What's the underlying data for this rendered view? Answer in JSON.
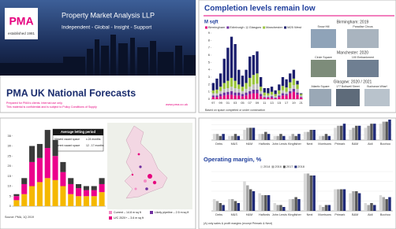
{
  "title_slide": {
    "logo": "PMA",
    "logo_sub": "established 1981",
    "company": "Property Market Analysis LLP",
    "tagline": "Independent - Global - Insight - Support",
    "title": "PMA UK National Forecasts",
    "disclaimer": [
      "Prepared for PMA's clients. Internal use only.",
      "This material is confidential and is subject to Policy Conditions of Supply"
    ],
    "url": "www.pma.co.uk"
  },
  "completion_slide": {
    "title": "Completion levels remain low",
    "note": "Based on space completed or under construction",
    "photos": [
      {
        "heading": "Birmingham: 2019",
        "captions": [
          "Snow Hill",
          "Paradise Circus"
        ]
      },
      {
        "heading": "Manchester: 2020",
        "captions": [
          "Circle Square",
          "100 Embankment"
        ]
      },
      {
        "heading": "Glasgow: 2020 / 2021",
        "captions": [
          "Atlantic Square",
          "177 Bothwell Street",
          "Buchanan Wharf"
        ]
      }
    ]
  },
  "letting_slide": {
    "table": {
      "title": "Average letting period",
      "rows": [
        [
          "Viewed vacant space",
          "c.24 months"
        ],
        [
          "Current vacant space",
          "12 - 17 months"
        ]
      ]
    },
    "map_legend": [
      "Current – 14.8 m sq ft",
      "U/C 2020+ – 3.6 m sq ft",
      "Likely pipeline – 2.5 m sq ft"
    ],
    "source": "Source: PMA, 1Q 2019"
  },
  "retail_slide": {
    "note": "(A) only sales & profit margins (except Primark & Next)"
  },
  "chart_data": [
    {
      "type": "bar",
      "stacked": true,
      "y_label": "M sqft",
      "legend": "top",
      "categories": [
        "97",
        null,
        "99",
        null,
        "01",
        null,
        "03",
        null,
        "05",
        null,
        "07",
        null,
        "09",
        null,
        "11",
        null,
        "13",
        null,
        "15",
        null,
        "17",
        null,
        "19",
        null,
        "21"
      ],
      "ylim": [
        0,
        9
      ],
      "yticks": [
        0,
        1,
        2,
        3,
        4,
        5,
        6,
        7,
        8,
        9
      ],
      "grid": false,
      "series": [
        {
          "name": "Birmingham",
          "color": "#e6007e",
          "values": [
            0.3,
            0.3,
            0.4,
            0.5,
            0.6,
            0.6,
            0.5,
            0.5,
            0.4,
            0.5,
            0.7,
            0.8,
            0.8,
            0.4,
            0.2,
            0.2,
            0.2,
            0.1,
            0.3,
            0.5,
            0.5,
            0.8,
            1.0,
            0.6,
            0.2
          ]
        },
        {
          "name": "Edinburgh",
          "color": "#7030a0",
          "values": [
            0.2,
            0.2,
            0.3,
            0.4,
            0.4,
            0.5,
            0.4,
            0.4,
            0.3,
            0.4,
            0.4,
            0.5,
            0.5,
            0.3,
            0.1,
            0.1,
            0.2,
            0.1,
            0.2,
            0.3,
            0.2,
            0.3,
            0.4,
            0.3,
            0.1
          ]
        },
        {
          "name": "Glasgow",
          "color": "#bfbfbf",
          "values": [
            0.3,
            0.3,
            0.4,
            0.5,
            0.5,
            0.6,
            0.6,
            0.5,
            0.4,
            0.5,
            0.6,
            0.7,
            0.8,
            0.4,
            0.2,
            0.2,
            0.2,
            0.2,
            0.2,
            0.4,
            0.3,
            0.4,
            0.5,
            0.5,
            0.2
          ]
        },
        {
          "name": "Manchester",
          "color": "#9bc53d",
          "values": [
            0.4,
            0.5,
            0.6,
            0.8,
            1.0,
            1.2,
            1.0,
            0.6,
            0.6,
            0.8,
            1.2,
            1.3,
            1.4,
            0.6,
            0.4,
            0.3,
            0.4,
            0.3,
            0.5,
            0.6,
            0.6,
            0.8,
            0.9,
            0.6,
            0.2
          ]
        },
        {
          "name": "M25 West",
          "color": "#1c1f6e",
          "values": [
            1.0,
            1.5,
            1.8,
            3.3,
            4.5,
            5.6,
            5.0,
            2.0,
            1.5,
            1.8,
            2.9,
            2.7,
            3.0,
            1.3,
            0.6,
            0.7,
            0.7,
            0.5,
            0.8,
            1.2,
            1.1,
            1.2,
            1.2,
            0.5,
            0.1
          ]
        }
      ]
    },
    {
      "type": "bar",
      "stacked": true,
      "categories": [
        null,
        null,
        null,
        null,
        null,
        null,
        null,
        null,
        null,
        null,
        null,
        null
      ],
      "ylim": [
        0,
        40
      ],
      "yticks": [
        0,
        5,
        10,
        15,
        20,
        25,
        30,
        35
      ],
      "grid": false,
      "series": [
        {
          "color": "#f5b800",
          "values": [
            3,
            6,
            10,
            12,
            14,
            13,
            10,
            6,
            5,
            5,
            5,
            7
          ]
        },
        {
          "color": "#ec008c",
          "values": [
            2,
            5,
            12,
            12,
            15,
            12,
            7,
            5,
            4,
            3,
            3,
            4
          ]
        },
        {
          "color": "#3a3a3a",
          "values": [
            1,
            3,
            8,
            7,
            9,
            8,
            5,
            3,
            2,
            2,
            2,
            3
          ]
        }
      ]
    },
    {
      "type": "bar",
      "stacked": false,
      "categories": [
        "Debs",
        "M&S",
        "H&M",
        "Halfords",
        "John Lewis",
        "Kingfisher",
        "Next",
        "Morrisons",
        "Primark",
        "B&M",
        "Aldi",
        "Boohoo"
      ],
      "ylim": [
        0,
        10
      ],
      "grid": true,
      "series": [
        {
          "color": "#d9d9d9",
          "values": [
            3,
            2,
            5,
            3,
            2,
            2,
            4,
            2,
            6,
            5,
            6,
            8
          ]
        },
        {
          "color": "#a6a6a6",
          "values": [
            3,
            2,
            6,
            3,
            2,
            3,
            4,
            2,
            7,
            6,
            7,
            9
          ]
        },
        {
          "color": "#595959",
          "values": [
            2,
            3,
            6,
            4,
            3,
            2,
            5,
            3,
            7,
            7,
            8,
            9
          ]
        },
        {
          "color": "#1f2a78",
          "values": [
            3,
            2,
            6,
            3,
            2,
            3,
            5,
            2,
            8,
            7,
            8,
            10
          ]
        }
      ]
    },
    {
      "type": "bar",
      "stacked": false,
      "title": "Operating margin, %",
      "legend": "top",
      "grid": true,
      "categories": [
        "Debs",
        "M&S",
        "H&M",
        "Halfords",
        "John Lewis",
        "Kingfisher",
        "Next",
        "Morrisons",
        "Primark",
        "B&M",
        "Aldi",
        "Boohoo"
      ],
      "ylim": [
        0,
        20
      ],
      "series": [
        {
          "name": "2014",
          "color": "#d9d9d9",
          "values": [
            6,
            6,
            15,
            9,
            4,
            6,
            19,
            3,
            11,
            9,
            4,
            8
          ]
        },
        {
          "name": "2016",
          "color": "#a6a6a6",
          "values": [
            5,
            6,
            13,
            8,
            3,
            6,
            19,
            2,
            11,
            10,
            3,
            7
          ]
        },
        {
          "name": "2017",
          "color": "#595959",
          "values": [
            4,
            5,
            11,
            8,
            3,
            7,
            18,
            3,
            11,
            10,
            4,
            6
          ]
        },
        {
          "name": "2018",
          "color": "#1f2a78",
          "values": [
            3,
            4,
            10,
            8,
            2,
            6,
            18,
            3,
            11,
            9,
            3,
            7
          ]
        }
      ]
    }
  ]
}
